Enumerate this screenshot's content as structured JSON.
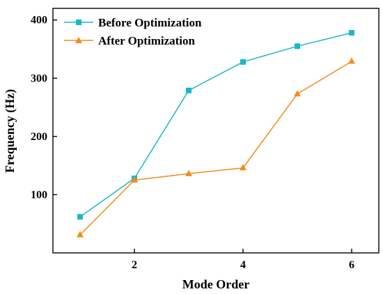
{
  "chart_data": {
    "type": "line",
    "xlabel": "Mode Order",
    "ylabel": "Frequency (Hz)",
    "xlim": [
      0.5,
      6.5
    ],
    "ylim": [
      0,
      420
    ],
    "xticks": [
      2,
      4,
      6
    ],
    "yticks": [
      100,
      200,
      300,
      400
    ],
    "x": [
      1,
      2,
      3,
      4,
      5,
      6
    ],
    "grid": false,
    "legend_position": "top-left",
    "series": [
      {
        "name": "Before Optimization",
        "color": "#1ab8c6",
        "marker": "square",
        "values": [
          62,
          128,
          279,
          328,
          355,
          378
        ]
      },
      {
        "name": "After Optimization",
        "color": "#f28c1e",
        "marker": "triangle",
        "values": [
          31,
          125,
          136,
          146,
          273,
          329
        ]
      }
    ]
  }
}
